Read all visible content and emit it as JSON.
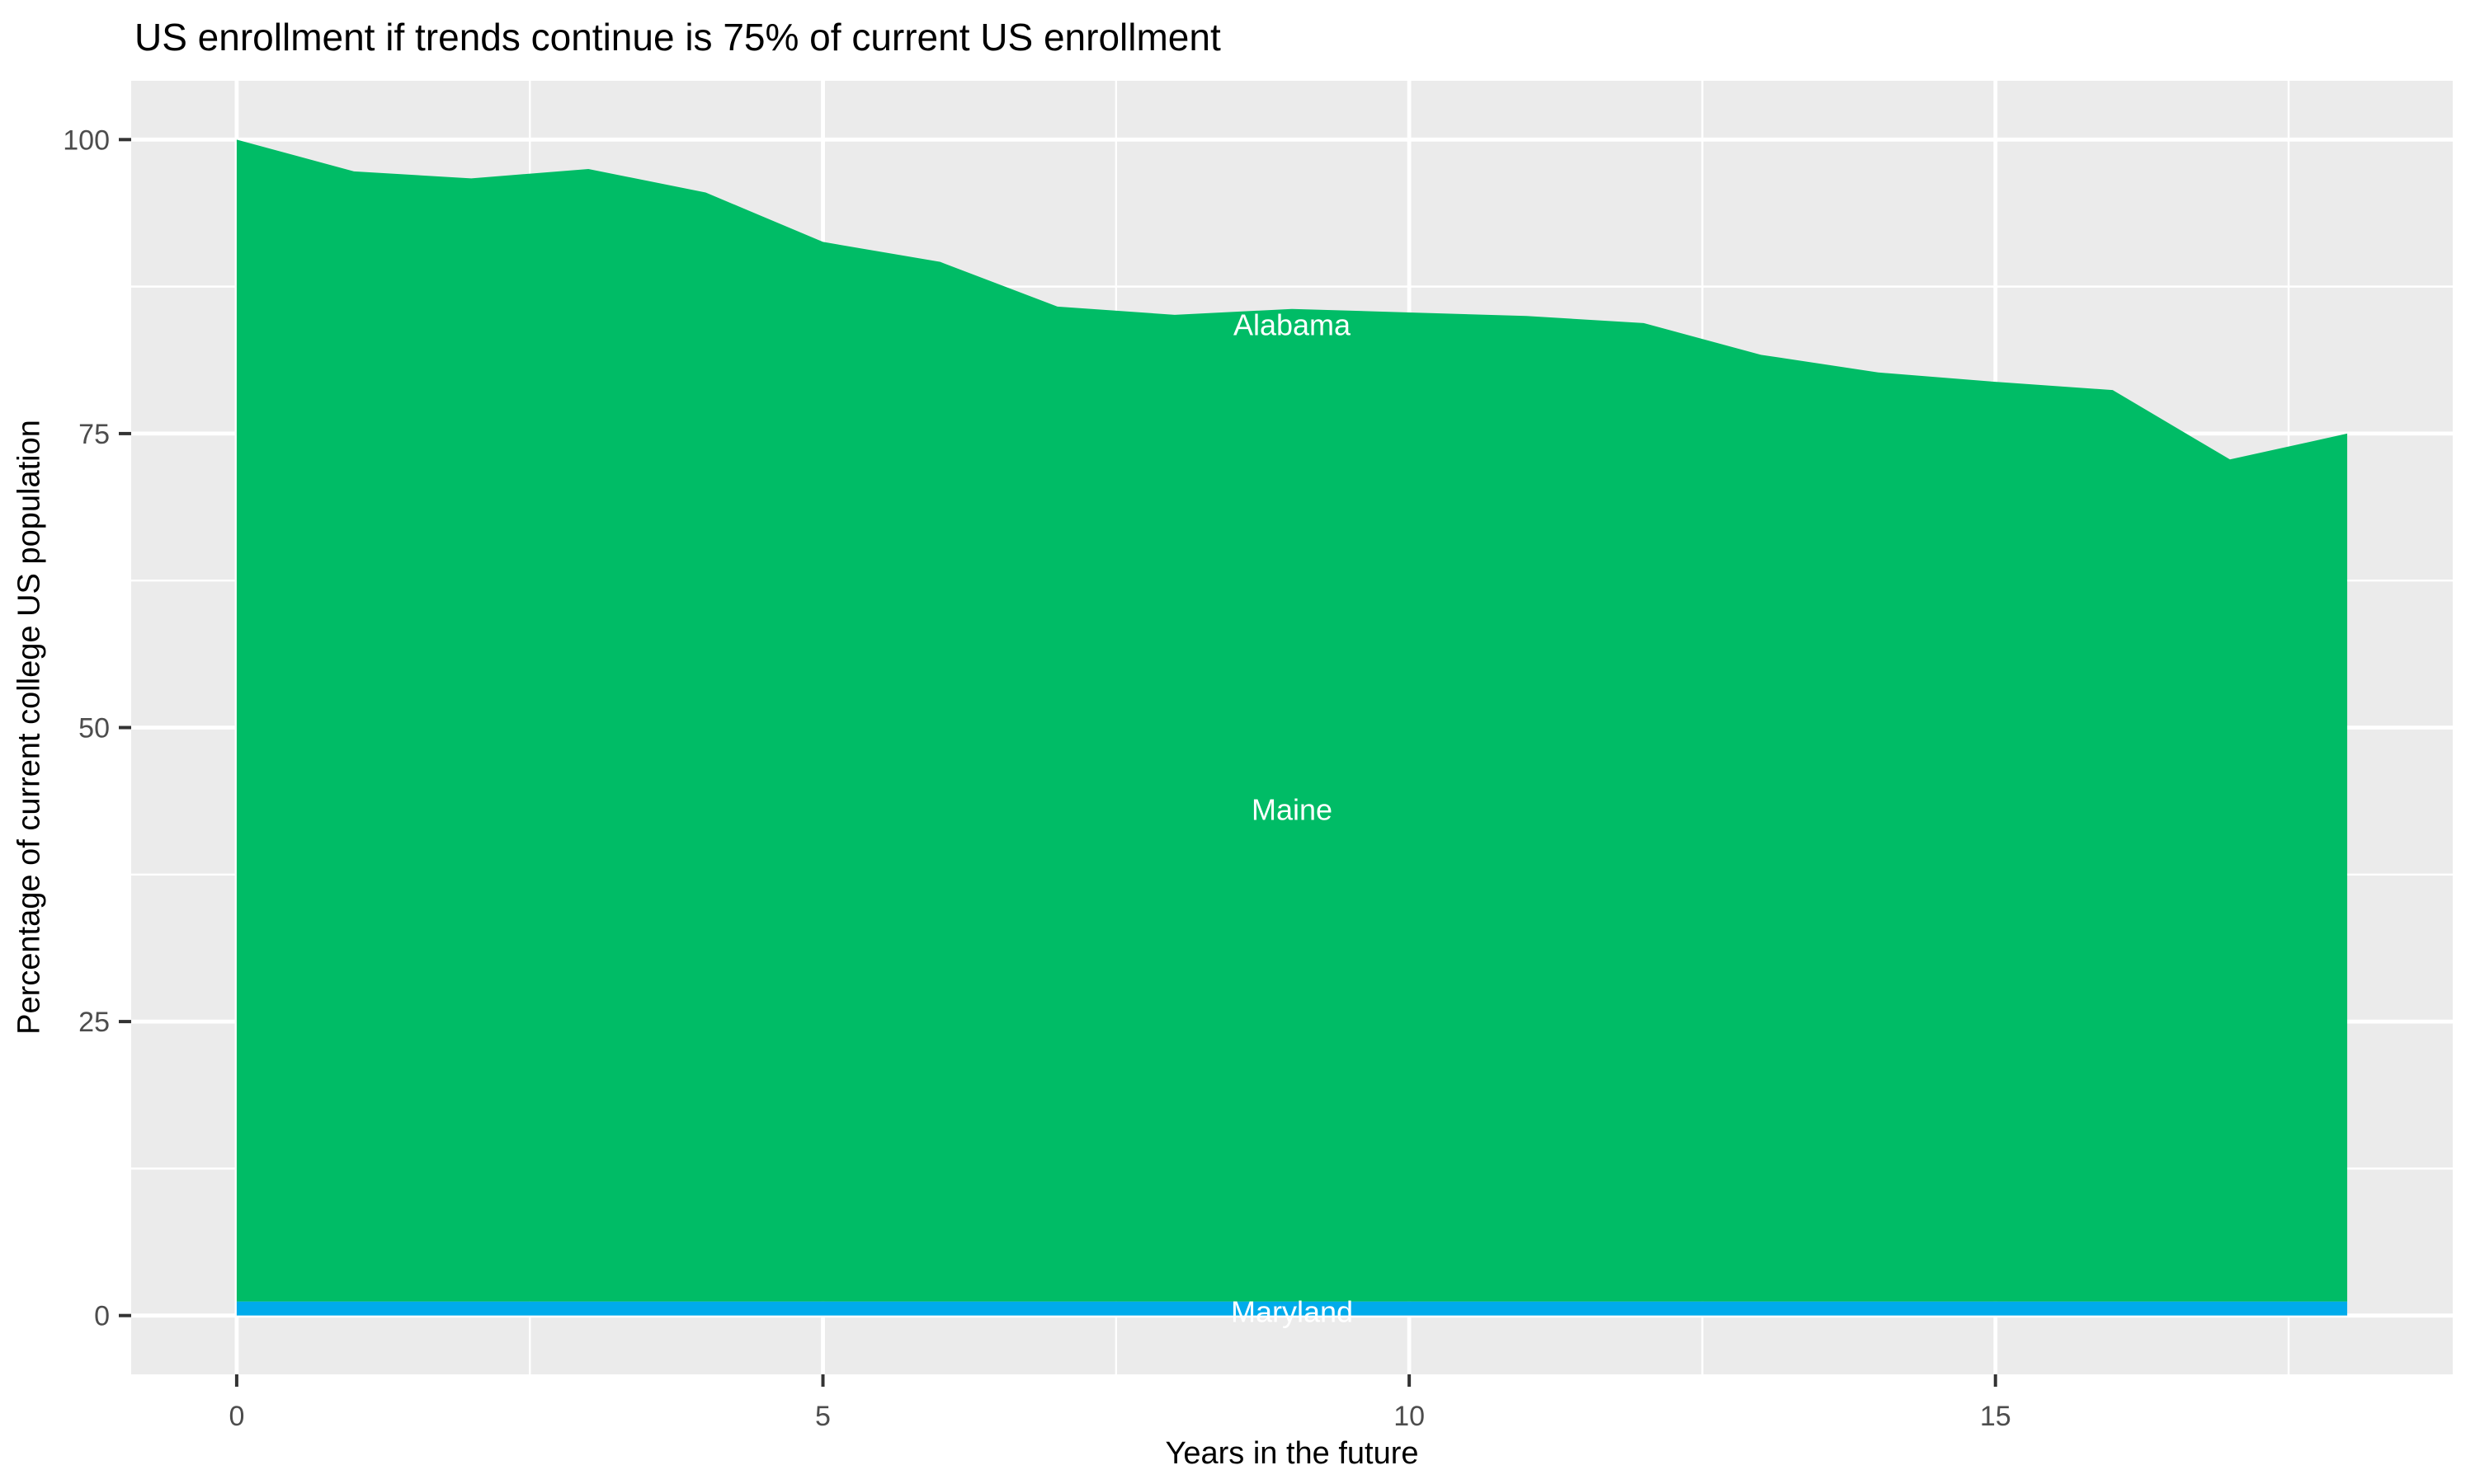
{
  "figure": {
    "title": "US enrollment if trends continue is 75% of current US enrollment",
    "xlabel": "Years in the future",
    "ylabel": "Percentage of current college US population"
  },
  "chart_data": {
    "type": "area",
    "stacked": true,
    "title": "US enrollment if trends continue is 75% of current US enrollment",
    "xlabel": "Years in the future",
    "ylabel": "Percentage of current college US population",
    "x": [
      0,
      1,
      2,
      3,
      4,
      5,
      6,
      7,
      8,
      9,
      10,
      11,
      12,
      13,
      14,
      15,
      16,
      17,
      18
    ],
    "bands": [
      {
        "name": "Maryland",
        "color": "#00ABEB",
        "top": [
          1.2,
          1.2,
          1.2,
          1.2,
          1.2,
          1.2,
          1.2,
          1.2,
          1.2,
          1.2,
          1.2,
          1.2,
          1.2,
          1.2,
          1.2,
          1.2,
          1.2,
          1.2,
          1.2
        ]
      },
      {
        "name": "Maine/Alabama",
        "color": "#00BC66",
        "top": [
          100,
          97.3,
          96.7,
          97.5,
          95.5,
          91.3,
          89.6,
          85.8,
          85.1,
          85.6,
          85.3,
          85.0,
          84.4,
          81.7,
          80.2,
          79.4,
          78.7,
          72.8,
          75.0
        ]
      }
    ],
    "state_labels": [
      {
        "text": "Alabama",
        "x": 9,
        "y": 84.2,
        "color": "#FFFFFF"
      },
      {
        "text": "Maine",
        "x": 9,
        "y": 43.0,
        "color": "#FFFFFF"
      },
      {
        "text": "Maryland",
        "x": 9,
        "y": 0.3,
        "color": "#FFFFFF"
      }
    ],
    "x_ticks": [
      0,
      5,
      10,
      15
    ],
    "y_ticks": [
      0,
      25,
      50,
      75,
      100
    ],
    "x_minor": [
      2.5,
      7.5,
      12.5,
      17.5
    ],
    "y_minor": [
      12.5,
      37.5,
      62.5,
      87.5
    ],
    "xlim": [
      -0.9,
      18.9
    ],
    "ylim": [
      -5,
      105
    ],
    "legend": "none",
    "grid": true,
    "panel_bg": "#EBEBEB",
    "grid_color": "#FFFFFF",
    "tick_color": "#333333",
    "tick_label_color": "#4D4D4D"
  }
}
